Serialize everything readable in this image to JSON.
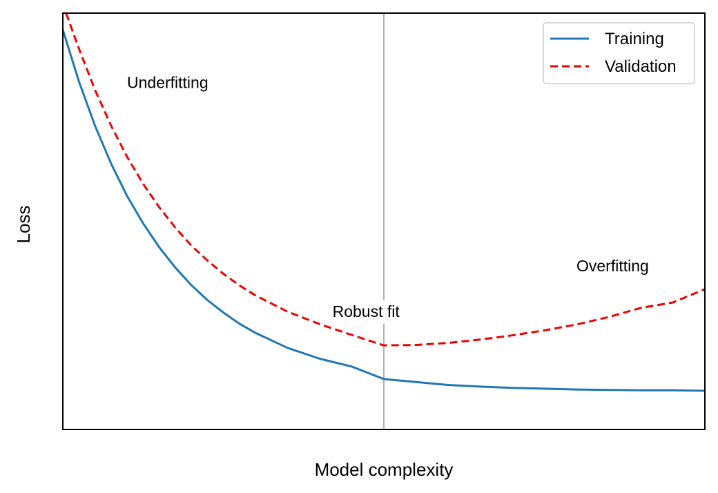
{
  "chart_data": {
    "type": "line",
    "title": "",
    "xlabel": "Model complexity",
    "ylabel": "Loss",
    "xlim": [
      0,
      10
    ],
    "ylim": [
      0,
      10
    ],
    "show_ticks": false,
    "grid": false,
    "legend": "top-right",
    "series": [
      {
        "name": "Training",
        "style": "solid",
        "color": "#1f77b4",
        "x": [
          0,
          0.25,
          0.5,
          0.75,
          1,
          1.25,
          1.5,
          1.75,
          2,
          2.25,
          2.5,
          2.75,
          3,
          3.5,
          4,
          4.5,
          5,
          5.5,
          6,
          6.5,
          7,
          7.5,
          8,
          8.5,
          9,
          9.5,
          10
        ],
        "y": [
          9.6,
          8.36,
          7.3,
          6.39,
          5.61,
          4.95,
          4.38,
          3.89,
          3.47,
          3.11,
          2.81,
          2.54,
          2.32,
          1.96,
          1.7,
          1.51,
          1.21,
          1.14,
          1.07,
          1.03,
          1.0,
          0.98,
          0.96,
          0.95,
          0.94,
          0.94,
          0.93
        ]
      },
      {
        "name": "Validation",
        "style": "dashed",
        "color": "#ee0000",
        "x": [
          0.05,
          0.25,
          0.5,
          0.75,
          1,
          1.25,
          1.5,
          1.75,
          2,
          2.25,
          2.5,
          2.75,
          3,
          3.5,
          4,
          4.5,
          5,
          5.5,
          6,
          6.5,
          7,
          7.5,
          8,
          8.5,
          9,
          9.5,
          10
        ],
        "y": [
          10.0,
          9.15,
          8.16,
          7.3,
          6.55,
          5.9,
          5.34,
          4.85,
          4.42,
          4.06,
          3.74,
          3.46,
          3.22,
          2.83,
          2.53,
          2.27,
          2.02,
          2.03,
          2.08,
          2.16,
          2.26,
          2.38,
          2.52,
          2.7,
          2.92,
          3.05,
          3.37
        ]
      }
    ],
    "vertical_line": {
      "x": 5.0,
      "color": "#999999"
    },
    "annotations": [
      {
        "text": "Underfitting",
        "x": 1.0,
        "y": 8.2
      },
      {
        "text": "Robust fit",
        "x": 4.2,
        "y": 2.7
      },
      {
        "text": "Overfitting",
        "x": 8.0,
        "y": 3.8
      }
    ]
  }
}
